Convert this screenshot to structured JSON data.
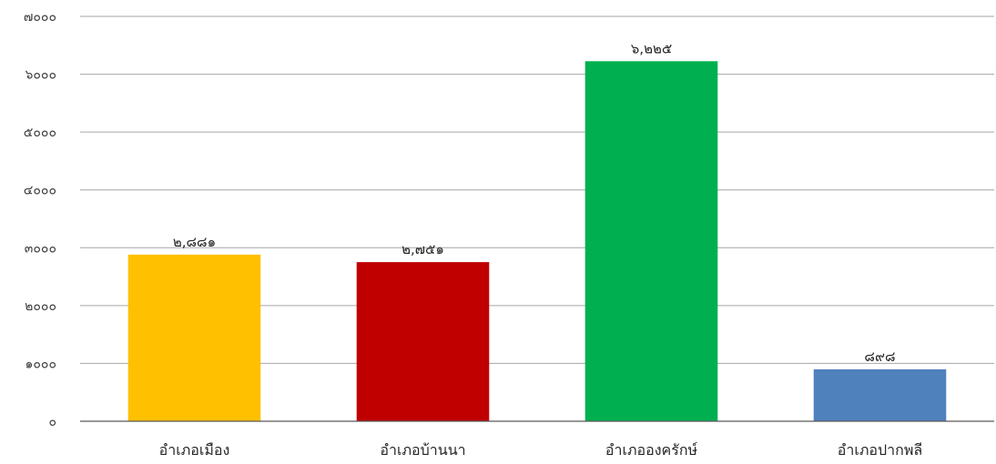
{
  "chart_data": {
    "type": "bar",
    "categories": [
      "อำเภอเมือง",
      "อำเภอบ้านนา",
      "อำเภอองครักษ์",
      "อำเภอปากพลี"
    ],
    "values": [
      2881,
      2751,
      6225,
      898
    ],
    "value_labels": [
      "๒,๘๘๑",
      "๒,๗๕๑",
      "๖,๒๒๕",
      "๘๙๘"
    ],
    "colors": [
      "#FFC000",
      "#C00000",
      "#00B050",
      "#4F81BD"
    ],
    "ylim": [
      0,
      7000
    ],
    "yticks": [
      0,
      1000,
      2000,
      3000,
      4000,
      5000,
      6000,
      7000
    ],
    "ytick_labels": [
      "๐",
      "๑๐๐๐",
      "๒๐๐๐",
      "๓๐๐๐",
      "๔๐๐๐",
      "๕๐๐๐",
      "๖๐๐๐",
      "๗๐๐๐"
    ],
    "grid": true,
    "legend": "none",
    "title": "",
    "xlabel": "",
    "ylabel": ""
  }
}
